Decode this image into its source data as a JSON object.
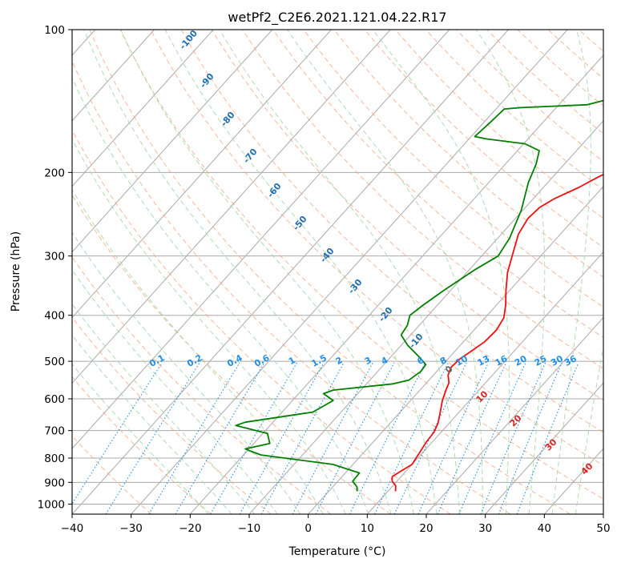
{
  "chart_data": {
    "type": "line",
    "title": "wetPf2_C2E6.2021.121.04.22.R17",
    "xlabel": "Temperature (°C)",
    "ylabel": "Pressure (hPa)",
    "xlim": [
      -40,
      50
    ],
    "ylim": [
      1050,
      100
    ],
    "yscale": "log",
    "xticks": [
      -40,
      -30,
      -20,
      -10,
      0,
      10,
      20,
      30,
      40,
      50
    ],
    "yticks": [
      1000,
      900,
      800,
      700,
      600,
      500,
      400,
      300,
      200,
      100
    ],
    "grid": true,
    "series": [
      {
        "role": "temperature",
        "color": "#ee1111",
        "points": [
          [
            11.3,
            940
          ],
          [
            10.5,
            915
          ],
          [
            9.2,
            895
          ],
          [
            8.5,
            875
          ],
          [
            9.2,
            850
          ],
          [
            10.0,
            825
          ],
          [
            9.6,
            790
          ],
          [
            9.0,
            740
          ],
          [
            8.8,
            705
          ],
          [
            8.1,
            675
          ],
          [
            6.8,
            640
          ],
          [
            5.4,
            605
          ],
          [
            4.4,
            575
          ],
          [
            3.8,
            555
          ],
          [
            2.5,
            535
          ],
          [
            1.8,
            515
          ],
          [
            2.0,
            495
          ],
          [
            2.8,
            475
          ],
          [
            3.6,
            455
          ],
          [
            3.8,
            430
          ],
          [
            3.2,
            405
          ],
          [
            1.5,
            380
          ],
          [
            -0.6,
            355
          ],
          [
            -3.1,
            325
          ],
          [
            -5.2,
            295
          ],
          [
            -7.1,
            270
          ],
          [
            -7.9,
            250
          ],
          [
            -7.6,
            237
          ],
          [
            -6.4,
            227
          ],
          [
            -4.0,
            215
          ],
          [
            -2.4,
            205
          ],
          [
            -0.4,
            195
          ],
          [
            3.4,
            182
          ],
          [
            8.1,
            168
          ],
          [
            11.3,
            160
          ],
          [
            13.9,
            150
          ],
          [
            16.3,
            140
          ],
          [
            18.7,
            130
          ],
          [
            21.7,
            122
          ],
          [
            24.7,
            115
          ],
          [
            26.5,
            109
          ],
          [
            27.4,
            104
          ],
          [
            27.9,
            100
          ]
        ]
      },
      {
        "role": "dewpoint",
        "color": "#008000",
        "points": [
          [
            4.8,
            940
          ],
          [
            4.1,
            920
          ],
          [
            2.5,
            895
          ],
          [
            2.4,
            860
          ],
          [
            -3.4,
            825
          ],
          [
            -17.0,
            788
          ],
          [
            -19.6,
            772
          ],
          [
            -20.6,
            765
          ],
          [
            -17.3,
            745
          ],
          [
            -19.2,
            710
          ],
          [
            -25.8,
            683
          ],
          [
            -24.7,
            672
          ],
          [
            -14.8,
            640
          ],
          [
            -13.1,
            605
          ],
          [
            -15.8,
            585
          ],
          [
            -14.7,
            575
          ],
          [
            -5.5,
            558
          ],
          [
            -3.4,
            548
          ],
          [
            -2.7,
            525
          ],
          [
            -2.9,
            508
          ],
          [
            -5.4,
            488
          ],
          [
            -9.0,
            462
          ],
          [
            -11.6,
            440
          ],
          [
            -12.0,
            420
          ],
          [
            -13.1,
            400
          ],
          [
            -12.4,
            380
          ],
          [
            -11.2,
            355
          ],
          [
            -9.0,
            320
          ],
          [
            -7.2,
            300
          ],
          [
            -8.0,
            275
          ],
          [
            -10.3,
            240
          ],
          [
            -13.3,
            210
          ],
          [
            -14.8,
            192
          ],
          [
            -16.3,
            180
          ],
          [
            -19.8,
            174
          ],
          [
            -27.0,
            170
          ],
          [
            -29.4,
            168
          ],
          [
            -28.9,
            156
          ],
          [
            -28.6,
            147
          ],
          [
            -26.0,
            146
          ],
          [
            -15.2,
            144
          ],
          [
            -10.8,
            138
          ],
          [
            -6.0,
            128
          ],
          [
            -3.8,
            119
          ],
          [
            -2.1,
            113
          ],
          [
            -0.9,
            108
          ],
          [
            0.2,
            104
          ],
          [
            1.5,
            100
          ]
        ]
      }
    ],
    "mixing_ratio_labels": [
      "0.1",
      "0.2",
      "0.4",
      "0.6",
      "1",
      "1.5",
      "2",
      "3",
      "4",
      "6",
      "8",
      "10",
      "13",
      "16",
      "20",
      "25",
      "30",
      "36"
    ],
    "mixing_ratio_values": [
      0.1,
      0.2,
      0.4,
      0.6,
      1,
      1.5,
      2,
      3,
      4,
      6,
      8,
      10,
      13,
      16,
      20,
      25,
      30,
      36
    ],
    "dry_adiabat_labels": [
      "-100",
      "-90",
      "-80",
      "-70",
      "-60",
      "-50",
      "-40",
      "-30",
      "-20",
      "-10"
    ],
    "moist_adiabat_labels": [
      "0",
      "10",
      "20",
      "30",
      "40"
    ],
    "colors": {
      "isotherm": "#aaaaaa",
      "dry_adiabat": "#f4a582",
      "moist_adiabat": "#a6d9a6",
      "mixing_ratio": "#1f8fe8",
      "dry_label": "#1f6fb4",
      "moist_label_warm": "#d62728",
      "moist_label_zero": "#666666",
      "theta_e": "#d9b896"
    }
  }
}
